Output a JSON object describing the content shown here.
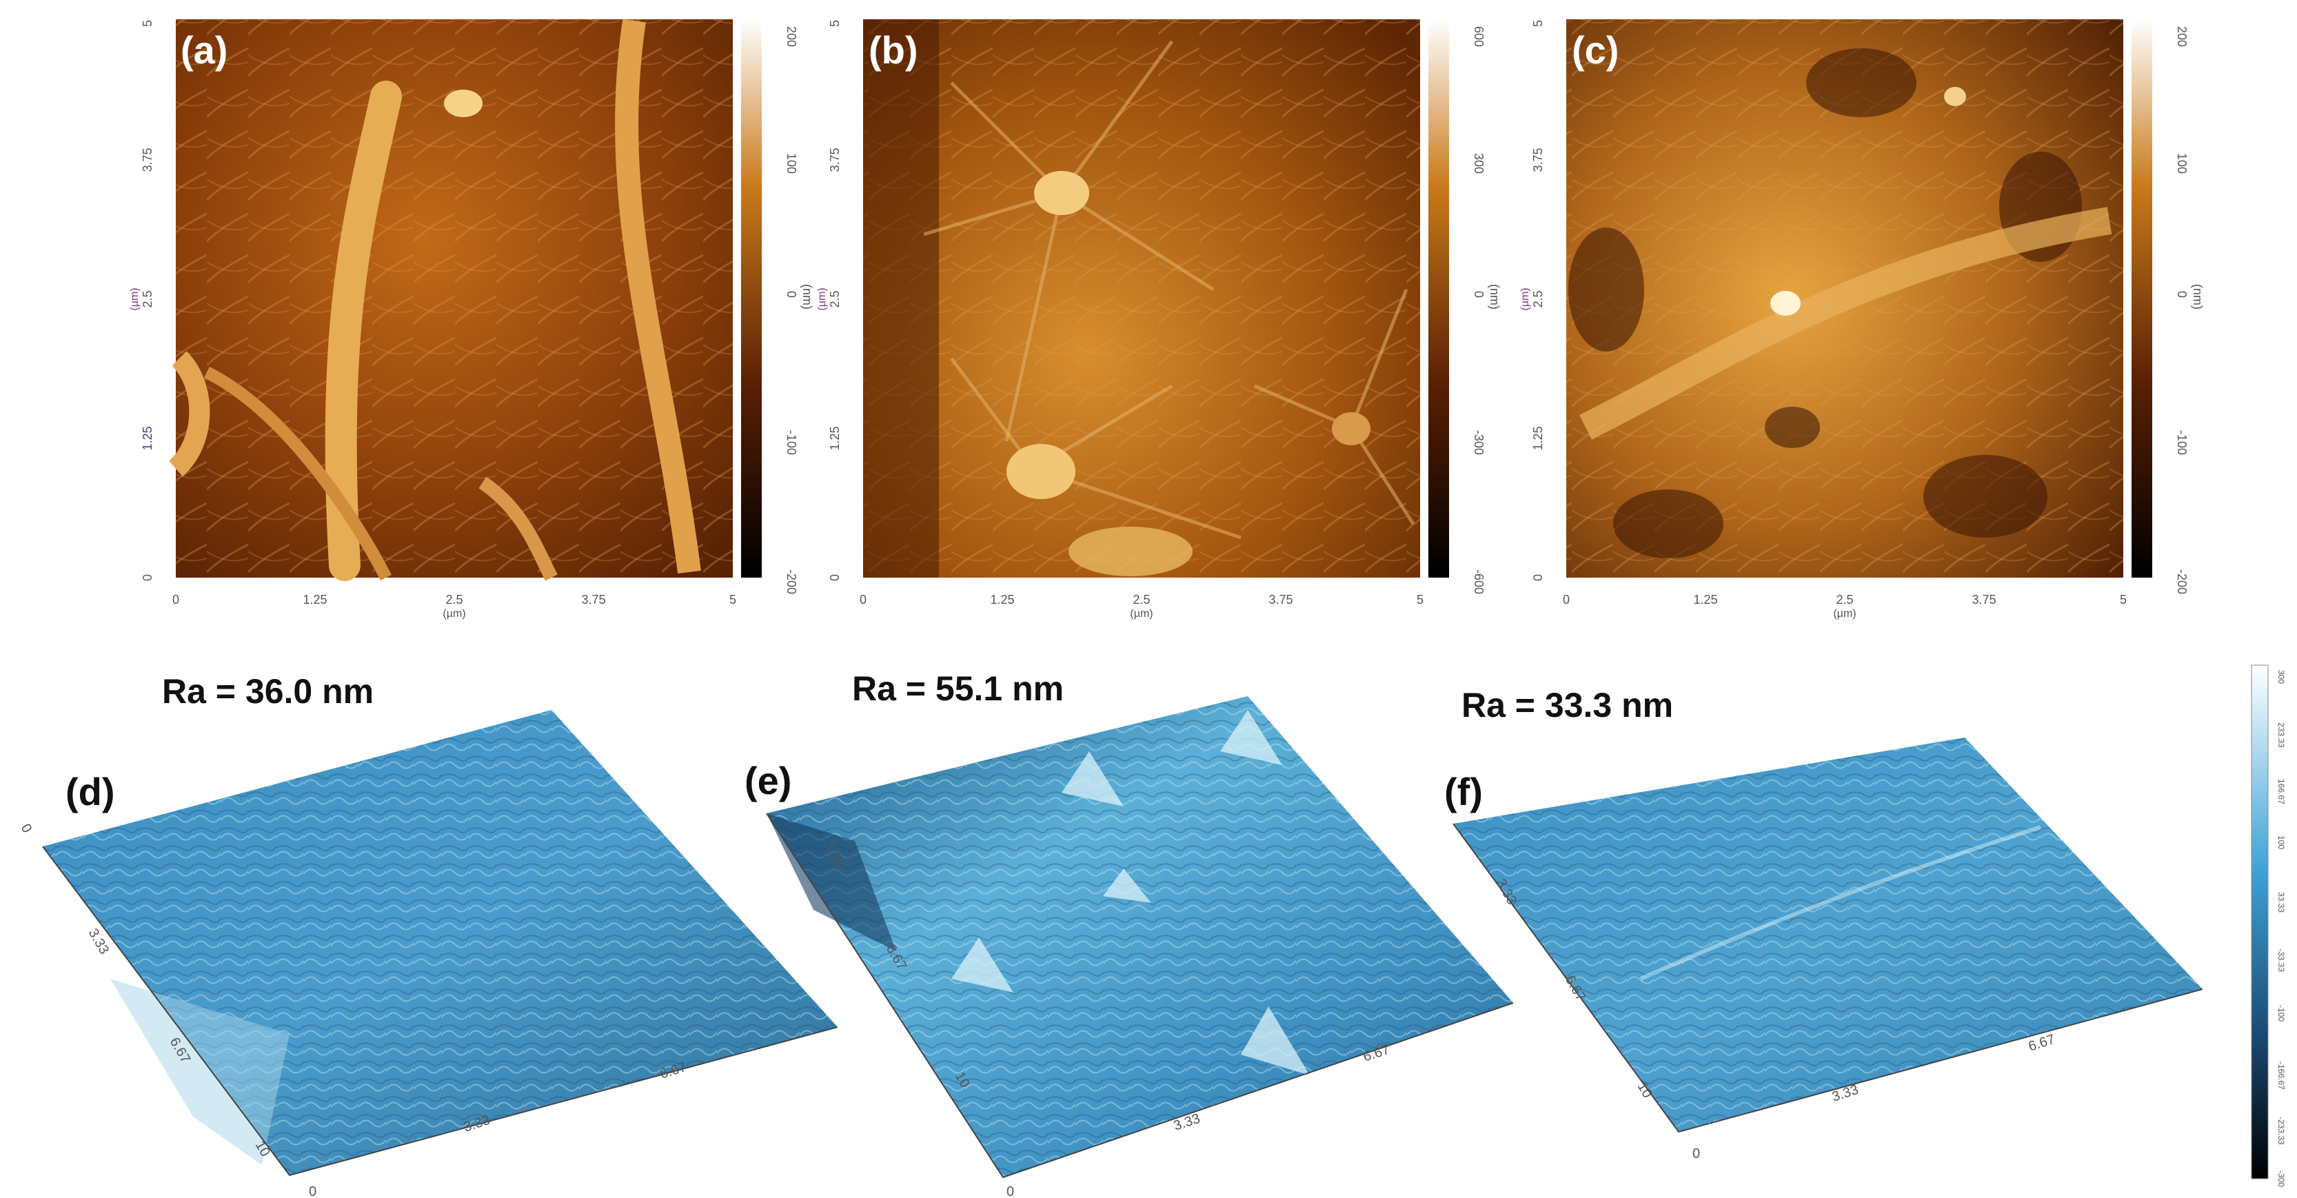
{
  "top_panels": [
    {
      "label": "(a)",
      "x_ticks": [
        "0",
        "1.25",
        "2.5",
        "3.75",
        "5"
      ],
      "y_ticks": [
        "0",
        "1.25",
        "2.5",
        "3.75",
        "5"
      ],
      "axis_unit": "(µm)",
      "colorbar_ticks": [
        "-200",
        "-100",
        "0",
        "100",
        "200"
      ],
      "colorbar_unit": "(nm)"
    },
    {
      "label": "(b)",
      "x_ticks": [
        "0",
        "1.25",
        "2.5",
        "3.75",
        "5"
      ],
      "y_ticks": [
        "0",
        "1.25",
        "2.5",
        "3.75",
        "5"
      ],
      "axis_unit": "(µm)",
      "colorbar_ticks": [
        "-600",
        "-300",
        "0",
        "300",
        "600"
      ],
      "colorbar_unit": "(nm)"
    },
    {
      "label": "(c)",
      "x_ticks": [
        "0",
        "1.25",
        "2.5",
        "3.75",
        "5"
      ],
      "y_ticks": [
        "0",
        "1.25",
        "2.5",
        "3.75",
        "5"
      ],
      "axis_unit": "(µm)",
      "colorbar_ticks": [
        "-200",
        "-100",
        "0",
        "100",
        "200"
      ],
      "colorbar_unit": "(nm)"
    }
  ],
  "bottom_panels": [
    {
      "label": "(d)",
      "ra": "Ra = 36.0 nm",
      "depth_ticks": [
        "0",
        "3.33",
        "6.67",
        "10"
      ],
      "width_ticks": [
        "3.33",
        "6.67"
      ]
    },
    {
      "label": "(e)",
      "ra": "Ra = 55.1 nm",
      "depth_ticks": [
        "0",
        "3.33",
        "6.67",
        "10"
      ],
      "width_ticks": [
        "3.33",
        "6.67"
      ]
    },
    {
      "label": "(f)",
      "ra": "Ra = 33.3 nm",
      "depth_ticks": [
        "0",
        "3.33",
        "6.67",
        "10"
      ],
      "width_ticks": [
        "3.33",
        "6.67"
      ]
    }
  ],
  "colorbar_3d_ticks": [
    "-300",
    "-233.33",
    "-166.67",
    "-100",
    "-33.33",
    "33.33",
    "100",
    "166.67",
    "233.33",
    "300"
  ],
  "colors": {
    "afm_dark": "#1a0800",
    "afm_mid": "#8a3e0a",
    "afm_light": "#f0c060",
    "surface_dark": "#14304a",
    "surface_mid": "#3a8ec0",
    "surface_light": "#c8ecf4"
  }
}
